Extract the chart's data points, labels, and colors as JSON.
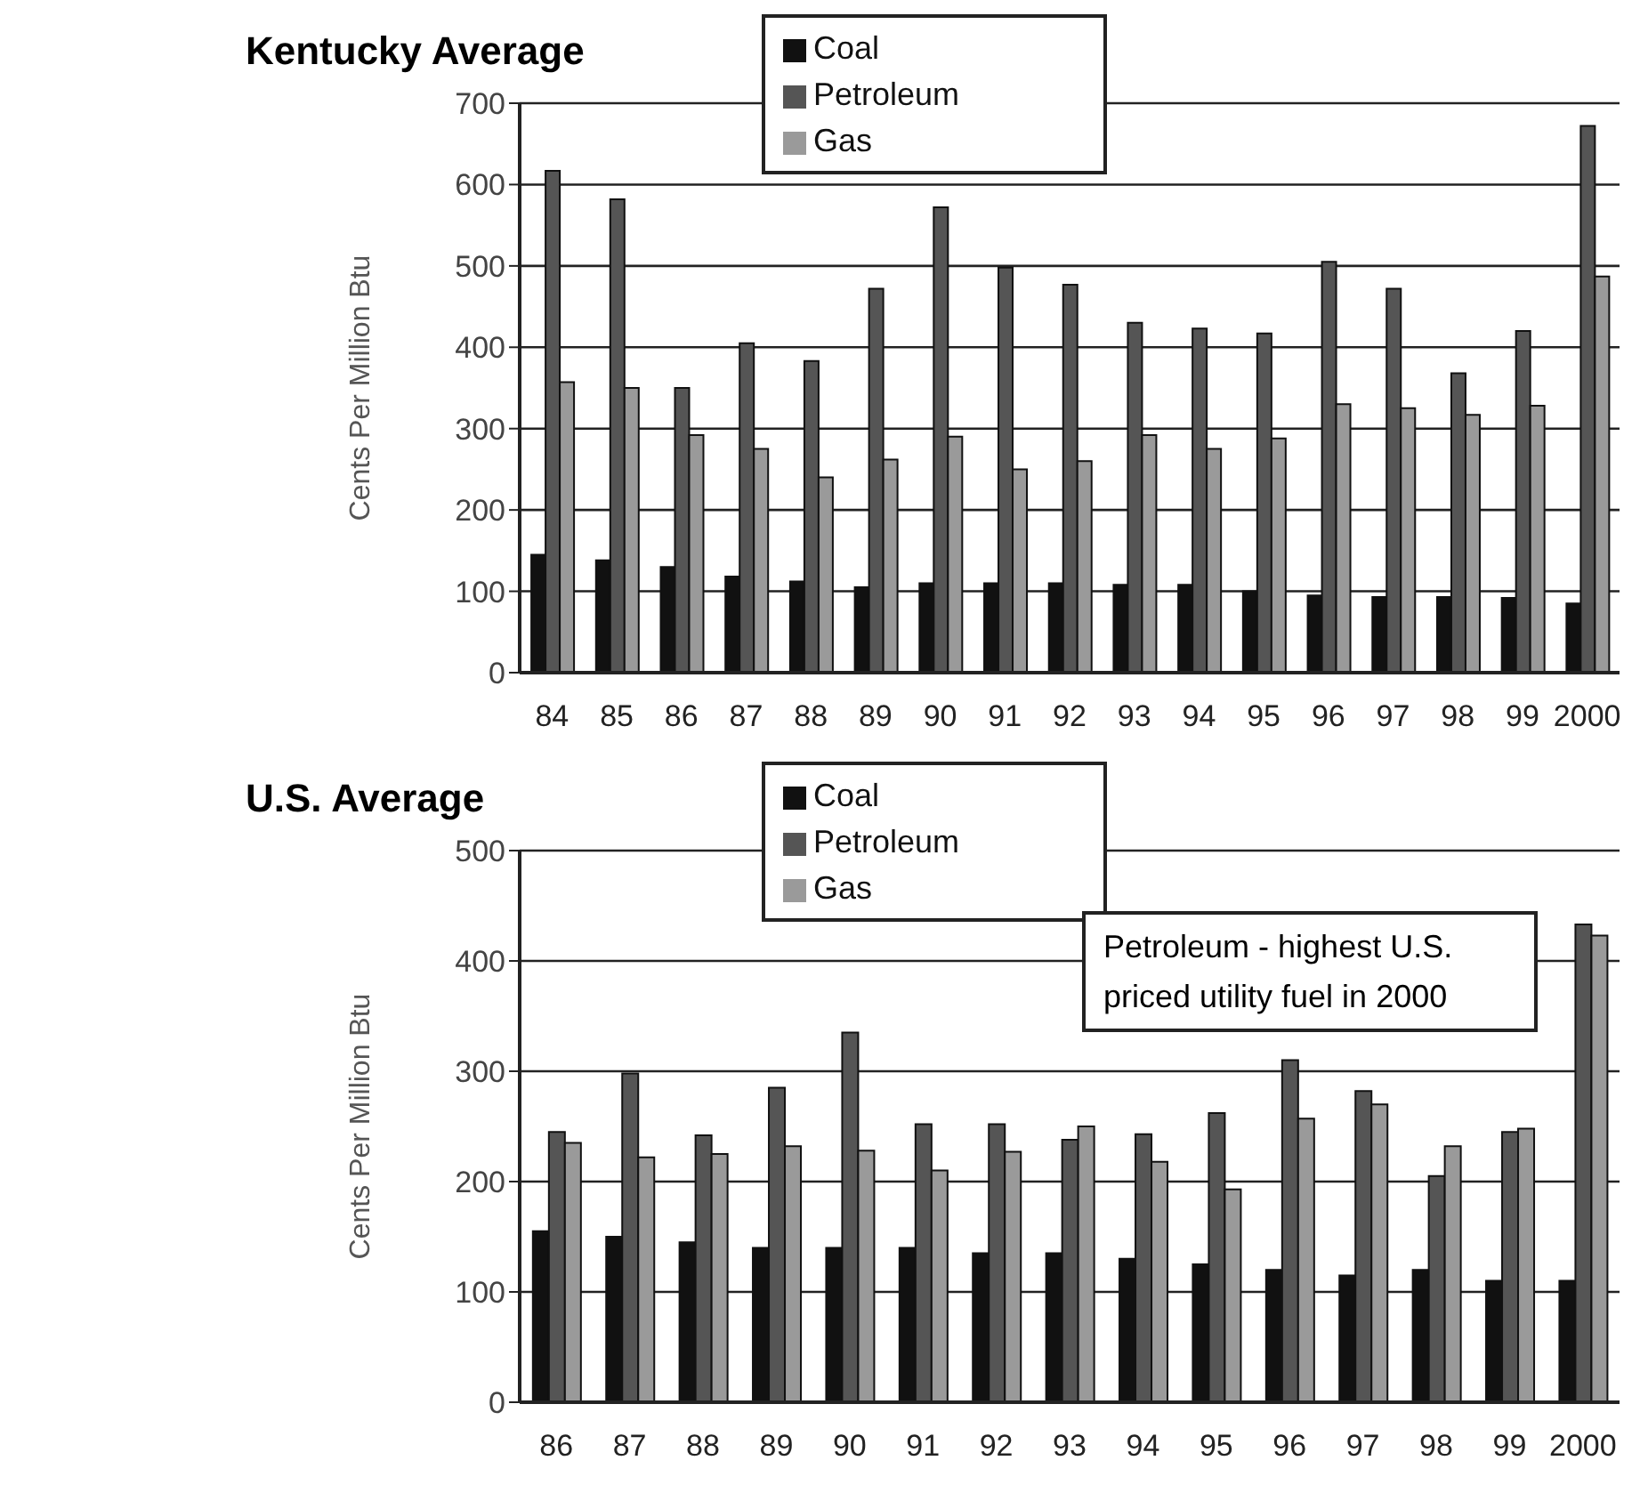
{
  "chart_data": [
    {
      "type": "bar",
      "title": "Kentucky  Average",
      "ylabel": "Cents Per Million Btu",
      "categories": [
        "84",
        "85",
        "86",
        "87",
        "88",
        "89",
        "90",
        "91",
        "92",
        "93",
        "94",
        "95",
        "96",
        "97",
        "98",
        "99",
        "2000"
      ],
      "series": [
        {
          "name": "Coal",
          "color": "#111111",
          "values": [
            145,
            138,
            130,
            118,
            112,
            105,
            110,
            110,
            110,
            108,
            108,
            100,
            95,
            93,
            93,
            92,
            85
          ]
        },
        {
          "name": "Petroleum",
          "color": "#555555",
          "values": [
            617,
            582,
            350,
            405,
            383,
            472,
            572,
            498,
            477,
            430,
            423,
            417,
            505,
            472,
            368,
            420,
            672
          ]
        },
        {
          "name": "Gas",
          "color": "#9a9a9a",
          "values": [
            357,
            350,
            292,
            275,
            240,
            262,
            290,
            250,
            260,
            292,
            275,
            288,
            330,
            325,
            317,
            328,
            487
          ]
        }
      ],
      "ylim": [
        0,
        700
      ],
      "yticks": [
        0,
        100,
        200,
        300,
        400,
        500,
        600,
        700
      ],
      "grid": "y",
      "legend": "top"
    },
    {
      "type": "bar",
      "title": "U.S.  Average",
      "ylabel": "Cents Per Million Btu",
      "categories": [
        "86",
        "87",
        "88",
        "89",
        "90",
        "91",
        "92",
        "93",
        "94",
        "95",
        "96",
        "97",
        "98",
        "99",
        "2000"
      ],
      "series": [
        {
          "name": "Coal",
          "color": "#111111",
          "values": [
            155,
            150,
            145,
            140,
            140,
            140,
            135,
            135,
            130,
            125,
            120,
            115,
            120,
            110,
            110
          ]
        },
        {
          "name": "Petroleum",
          "color": "#555555",
          "values": [
            245,
            298,
            242,
            285,
            335,
            252,
            252,
            238,
            243,
            262,
            310,
            282,
            205,
            245,
            433
          ]
        },
        {
          "name": "Gas",
          "color": "#9a9a9a",
          "values": [
            235,
            222,
            225,
            232,
            228,
            210,
            227,
            250,
            218,
            193,
            257,
            270,
            232,
            248,
            423
          ]
        }
      ],
      "ylim": [
        0,
        500
      ],
      "yticks": [
        0,
        100,
        200,
        300,
        400,
        500
      ],
      "grid": "y",
      "legend": "top",
      "annotations": [
        "Petroleum - highest U.S. priced utility fuel in 2000"
      ]
    }
  ]
}
